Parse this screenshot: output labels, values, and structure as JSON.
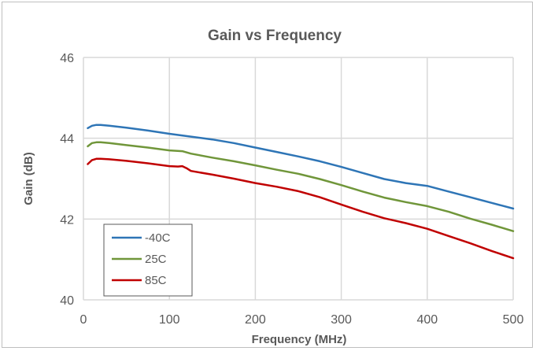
{
  "chart_data": {
    "type": "line",
    "title": "Gain vs Frequency",
    "xlabel": "Frequency (MHz)",
    "ylabel": "Gain (dB)",
    "xlim": [
      0,
      500
    ],
    "ylim": [
      40,
      46
    ],
    "xticks": [
      0,
      100,
      200,
      300,
      400,
      500
    ],
    "yticks": [
      40,
      42,
      44,
      46
    ],
    "grid": true,
    "legend_position": "bottom-left",
    "series": [
      {
        "name": "-40C",
        "color": "#2e75b6",
        "x": [
          5,
          10,
          15,
          20,
          30,
          50,
          75,
          100,
          125,
          150,
          175,
          200,
          225,
          250,
          275,
          300,
          325,
          350,
          375,
          400,
          425,
          450,
          475,
          500
        ],
        "y": [
          44.25,
          44.31,
          44.33,
          44.33,
          44.31,
          44.26,
          44.19,
          44.11,
          44.04,
          43.97,
          43.88,
          43.77,
          43.66,
          43.55,
          43.43,
          43.29,
          43.14,
          42.99,
          42.89,
          42.82,
          42.68,
          42.54,
          42.4,
          42.26
        ]
      },
      {
        "name": "25C",
        "color": "#70963a",
        "x": [
          5,
          10,
          15,
          20,
          30,
          50,
          75,
          100,
          115,
          125,
          150,
          175,
          200,
          225,
          250,
          275,
          300,
          325,
          350,
          375,
          400,
          425,
          450,
          475,
          500
        ],
        "y": [
          43.8,
          43.88,
          43.9,
          43.9,
          43.88,
          43.83,
          43.77,
          43.7,
          43.68,
          43.62,
          43.52,
          43.43,
          43.33,
          43.22,
          43.12,
          42.99,
          42.84,
          42.68,
          42.53,
          42.42,
          42.32,
          42.18,
          42.01,
          41.86,
          41.7
        ]
      },
      {
        "name": "85C",
        "color": "#c00000",
        "x": [
          5,
          10,
          15,
          20,
          30,
          50,
          75,
          100,
          110,
          115,
          120,
          125,
          150,
          175,
          200,
          225,
          250,
          275,
          300,
          325,
          350,
          375,
          400,
          425,
          450,
          475,
          500
        ],
        "y": [
          43.36,
          43.46,
          43.49,
          43.49,
          43.48,
          43.44,
          43.38,
          43.31,
          43.3,
          43.31,
          43.26,
          43.19,
          43.1,
          43.0,
          42.89,
          42.8,
          42.69,
          42.54,
          42.36,
          42.18,
          42.02,
          41.9,
          41.76,
          41.58,
          41.4,
          41.21,
          41.03
        ]
      }
    ]
  }
}
